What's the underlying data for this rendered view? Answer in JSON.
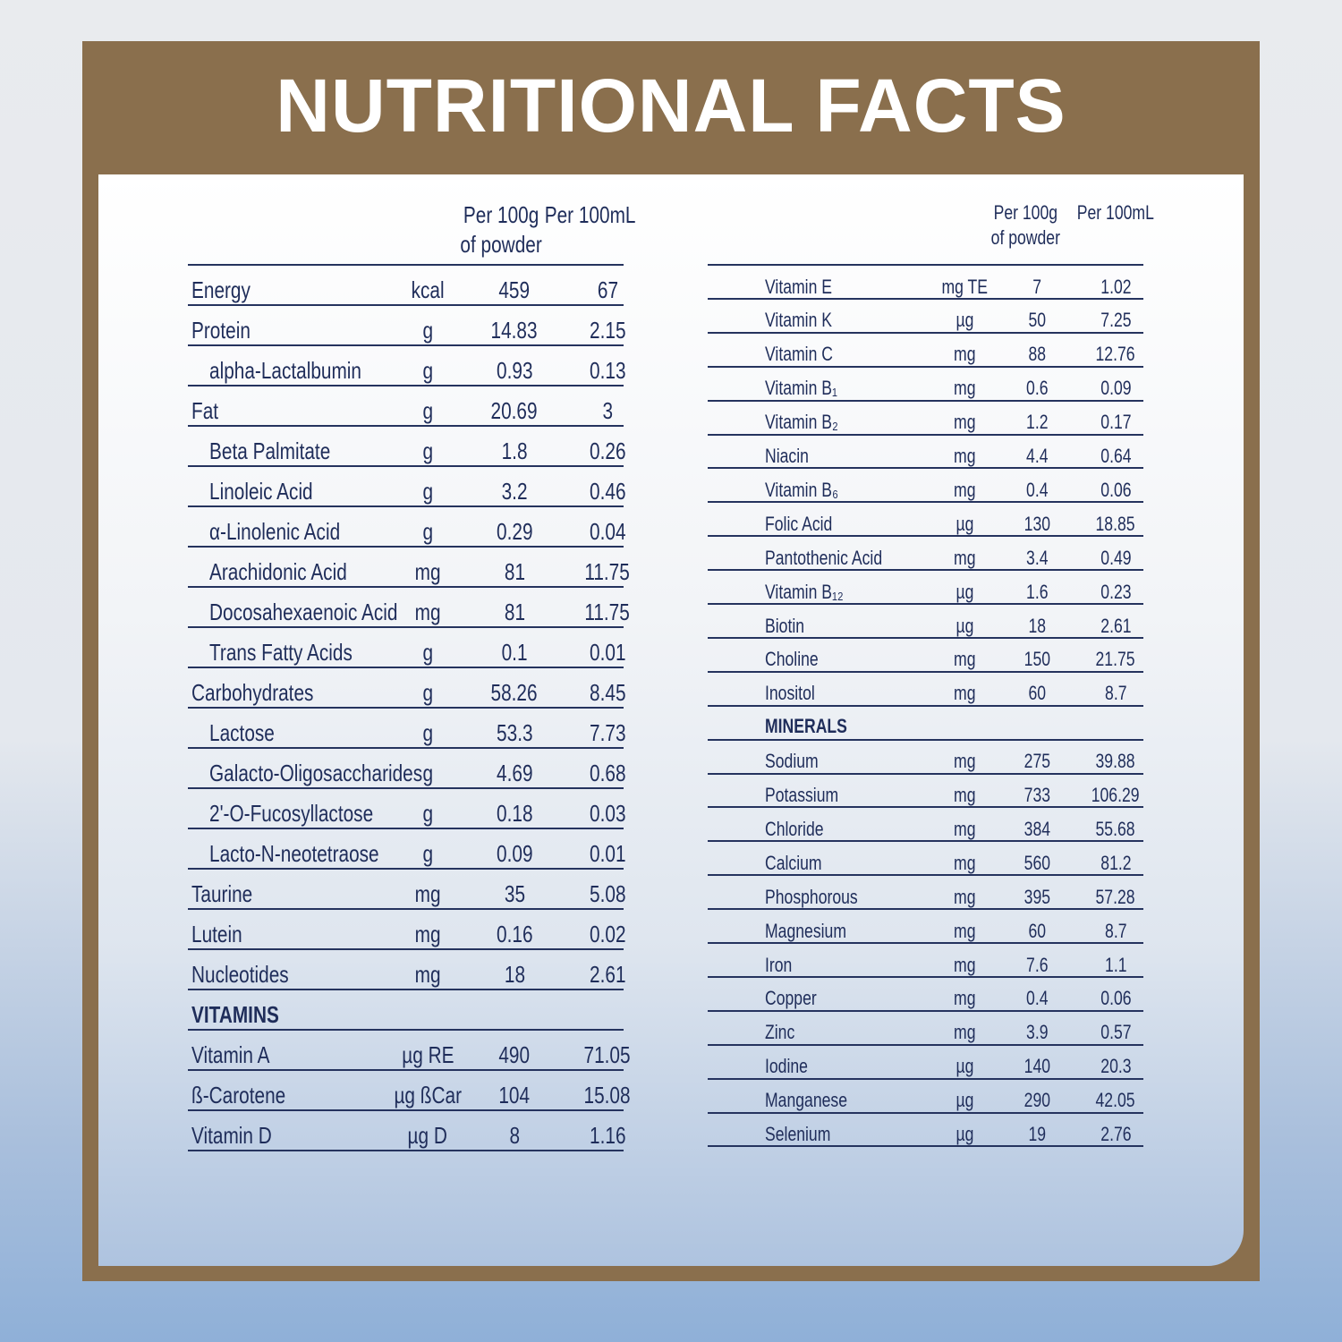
{
  "title": "NUTRITIONAL FACTS",
  "left": {
    "columns": [
      "Per 100g\nof powder",
      "Per 100mL"
    ],
    "groups": [
      {
        "rows": [
          {
            "cells": [
              "Energy",
              "kcal",
              "459",
              "67"
            ]
          },
          {
            "cells": [
              "Protein",
              "g",
              "14.83",
              "2.15"
            ],
            "sub": [
              [
                "alpha-Lactalbumin",
                "g",
                "0.93",
                "0.13"
              ]
            ]
          },
          {
            "cells": [
              "Fat",
              "g",
              "20.69",
              "3"
            ],
            "sub": [
              [
                "Beta Palmitate",
                "g",
                "1.8",
                "0.26"
              ],
              [
                "Linoleic Acid",
                "g",
                "3.2",
                "0.46"
              ],
              [
                "α-Linolenic Acid",
                "g",
                "0.29",
                "0.04"
              ],
              [
                "Arachidonic Acid",
                "mg",
                "81",
                "11.75"
              ],
              [
                "Docosahexaenoic Acid",
                "mg",
                "81",
                "11.75"
              ],
              [
                "Trans Fatty Acids",
                "g",
                "0.1",
                "0.01"
              ]
            ]
          },
          {
            "cells": [
              "Carbohydrates",
              "g",
              "58.26",
              "8.45"
            ],
            "sub": [
              [
                "Lactose",
                "g",
                "53.3",
                "7.73"
              ],
              [
                "Galacto-Oligosaccharides",
                "g",
                "4.69",
                "0.68"
              ],
              [
                "2'-O-Fucosyllactose",
                "g",
                "0.18",
                "0.03"
              ],
              [
                "Lacto-N-neotetraose",
                "g",
                "0.09",
                "0.01"
              ]
            ]
          },
          {
            "cells": [
              "Taurine",
              "mg",
              "35",
              "5.08"
            ]
          },
          {
            "cells": [
              "Lutein",
              "mg",
              "0.16",
              "0.02"
            ]
          },
          {
            "cells": [
              "Nucleotides",
              "mg",
              "18",
              "2.61"
            ]
          }
        ]
      },
      {
        "heading": "VITAMINS",
        "rows": [
          {
            "cells": [
              "Vitamin A",
              "µg RE",
              "490",
              "71.05"
            ]
          },
          {
            "cells": [
              "ß-Carotene",
              "µg ßCar",
              "104",
              "15.08"
            ]
          },
          {
            "cells": [
              "Vitamin D",
              "µg D",
              "8",
              "1.16"
            ]
          }
        ]
      }
    ]
  },
  "right": {
    "columns": [
      "Per 100g\nof powder",
      "Per 100mL"
    ],
    "groups": [
      {
        "rows": [
          {
            "cells": [
              "Vitamin E",
              "mg TE",
              "7",
              "1.02"
            ]
          },
          {
            "cells": [
              "Vitamin K",
              "µg",
              "50",
              "7.25"
            ]
          },
          {
            "cells": [
              "Vitamin C",
              "mg",
              "88",
              "12.76"
            ]
          },
          {
            "cells": [
              "Vitamin B₁",
              "mg",
              "0.6",
              "0.09"
            ]
          },
          {
            "cells": [
              "Vitamin B₂",
              "mg",
              "1.2",
              "0.17"
            ]
          },
          {
            "cells": [
              "Niacin",
              "mg",
              "4.4",
              "0.64"
            ]
          },
          {
            "cells": [
              "Vitamin B₆",
              "mg",
              "0.4",
              "0.06"
            ]
          },
          {
            "cells": [
              "Folic Acid",
              "µg",
              "130",
              "18.85"
            ]
          },
          {
            "cells": [
              "Pantothenic Acid",
              "mg",
              "3.4",
              "0.49"
            ]
          },
          {
            "cells": [
              "Vitamin B₁₂",
              "µg",
              "1.6",
              "0.23"
            ]
          },
          {
            "cells": [
              "Biotin",
              "µg",
              "18",
              "2.61"
            ]
          },
          {
            "cells": [
              "Choline",
              "mg",
              "150",
              "21.75"
            ]
          },
          {
            "cells": [
              "Inositol",
              "mg",
              "60",
              "8.7"
            ]
          }
        ]
      },
      {
        "heading": "MINERALS",
        "rows": [
          {
            "cells": [
              "Sodium",
              "mg",
              "275",
              "39.88"
            ]
          },
          {
            "cells": [
              "Potassium",
              "mg",
              "733",
              "106.29"
            ]
          },
          {
            "cells": [
              "Chloride",
              "mg",
              "384",
              "55.68"
            ]
          },
          {
            "cells": [
              "Calcium",
              "mg",
              "560",
              "81.2"
            ]
          },
          {
            "cells": [
              "Phosphorous",
              "mg",
              "395",
              "57.28"
            ]
          },
          {
            "cells": [
              "Magnesium",
              "mg",
              "60",
              "8.7"
            ]
          },
          {
            "cells": [
              "Iron",
              "mg",
              "7.6",
              "1.1"
            ]
          },
          {
            "cells": [
              "Copper",
              "mg",
              "0.4",
              "0.06"
            ]
          },
          {
            "cells": [
              "Zinc",
              "mg",
              "3.9",
              "0.57"
            ]
          },
          {
            "cells": [
              "Iodine",
              "µg",
              "140",
              "20.3"
            ]
          },
          {
            "cells": [
              "Manganese",
              "µg",
              "290",
              "42.05"
            ]
          },
          {
            "cells": [
              "Selenium",
              "µg",
              "19",
              "2.76"
            ]
          }
        ]
      }
    ]
  }
}
